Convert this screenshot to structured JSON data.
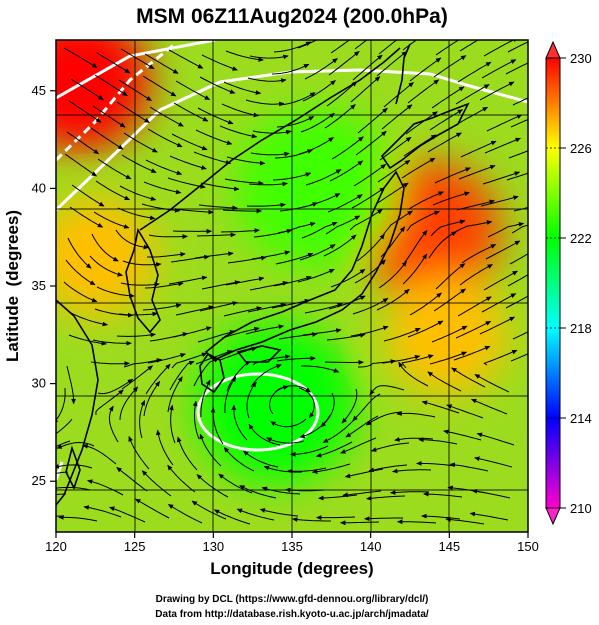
{
  "title": "MSM 06Z11Aug2024 (200.0hPa)",
  "credits": [
    "Drawing by DCL (https://www.gfd-dennou.org/library/dcl/)",
    "Data from http://database.rish.kyoto-u.ac.jp/arch/jmadata/"
  ],
  "chart_data": {
    "type": "heatmap",
    "title": "MSM 06Z11Aug2024 (200.0hPa)",
    "xlabel": "Longitude (degrees)",
    "ylabel": "Latitude  (degrees)",
    "xlim": [
      120,
      150
    ],
    "ylim": [
      22.4,
      47.6
    ],
    "xticks": [
      120,
      125,
      130,
      135,
      140,
      145,
      150
    ],
    "yticks": [
      25,
      30,
      35,
      40,
      45
    ],
    "grid": true,
    "colorbar": {
      "range": [
        210,
        230
      ],
      "ticks": [
        210,
        214,
        218,
        222,
        226,
        230
      ],
      "colors": [
        "#ff00cc",
        "#0000ff",
        "#00ffff",
        "#00ff00",
        "#ffff00",
        "#ff0000"
      ]
    },
    "field_features": [
      {
        "kind": "warm-area",
        "lon": 121.5,
        "lat": 45.5,
        "value": 230
      },
      {
        "kind": "warm-area",
        "lon": 143.8,
        "lat": 37.8,
        "value": 229
      },
      {
        "kind": "warm-area",
        "lon": 144.8,
        "lat": 32.5,
        "value": 227
      },
      {
        "kind": "warm-area",
        "lon": 122.5,
        "lat": 36.5,
        "value": 227
      },
      {
        "kind": "cool-area",
        "lon": 134.0,
        "lat": 29.0,
        "value": 222
      },
      {
        "kind": "cool-area",
        "lon": 136.5,
        "lat": 40.0,
        "value": 223
      }
    ]
  }
}
